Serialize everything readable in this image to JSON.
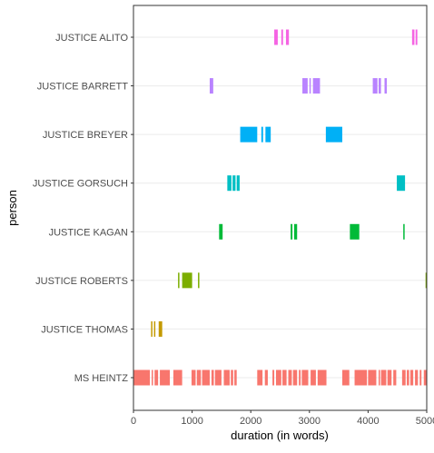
{
  "chart_data": {
    "type": "timeline",
    "xlabel": "duration (in words)",
    "ylabel": "person",
    "xlim": [
      0,
      5000
    ],
    "x_ticks": [
      0,
      1000,
      2000,
      3000,
      4000,
      5000
    ],
    "x_tick_labels": [
      "0",
      "1000",
      "2000",
      "3000",
      "4000",
      "5000"
    ],
    "grid": "major gridlines (light grey)",
    "legend": "none",
    "categories": [
      "JUSTICE ALITO",
      "JUSTICE BARRETT",
      "JUSTICE BREYER",
      "JUSTICE GORSUCH",
      "JUSTICE KAGAN",
      "JUSTICE ROBERTS",
      "JUSTICE THOMAS",
      "MS HEINTZ"
    ],
    "series": [
      {
        "color": "#F564E3",
        "segments": [
          [
            2400,
            2460
          ],
          [
            2520,
            2550
          ],
          [
            2600,
            2650
          ],
          [
            4750,
            4790
          ],
          [
            4810,
            4840
          ]
        ]
      },
      {
        "color": "#B983FF",
        "segments": [
          [
            1300,
            1360
          ],
          [
            2880,
            2970
          ],
          [
            3000,
            3020
          ],
          [
            3060,
            3180
          ],
          [
            4080,
            4160
          ],
          [
            4180,
            4220
          ],
          [
            4280,
            4320
          ]
        ]
      },
      {
        "color": "#00B0F6",
        "segments": [
          [
            1820,
            2110
          ],
          [
            2180,
            2210
          ],
          [
            2250,
            2340
          ],
          [
            3280,
            3560
          ]
        ]
      },
      {
        "color": "#00BFC4",
        "segments": [
          [
            1600,
            1670
          ],
          [
            1690,
            1740
          ],
          [
            1760,
            1810
          ],
          [
            4490,
            4630
          ]
        ]
      },
      {
        "color": "#00BA38",
        "segments": [
          [
            1460,
            1520
          ],
          [
            2680,
            2710
          ],
          [
            2740,
            2790
          ],
          [
            3690,
            3850
          ],
          [
            4600,
            4620
          ]
        ]
      },
      {
        "color": "#7CAE00",
        "segments": [
          [
            760,
            780
          ],
          [
            830,
            1000
          ],
          [
            1100,
            1120
          ],
          [
            4980,
            5000
          ]
        ]
      },
      {
        "color": "#C49A00",
        "segments": [
          [
            300,
            320
          ],
          [
            350,
            370
          ],
          [
            430,
            490
          ]
        ]
      },
      {
        "color": "#F8766D",
        "segments": [
          [
            0,
            280
          ],
          [
            310,
            330
          ],
          [
            360,
            420
          ],
          [
            450,
            620
          ],
          [
            680,
            830
          ],
          [
            990,
            1060
          ],
          [
            1080,
            1150
          ],
          [
            1170,
            1300
          ],
          [
            1330,
            1370
          ],
          [
            1390,
            1500
          ],
          [
            1540,
            1640
          ],
          [
            1660,
            1700
          ],
          [
            1720,
            1760
          ],
          [
            2110,
            2200
          ],
          [
            2240,
            2290
          ],
          [
            2370,
            2400
          ],
          [
            2430,
            2520
          ],
          [
            2540,
            2610
          ],
          [
            2640,
            2700
          ],
          [
            2720,
            2790
          ],
          [
            2820,
            2850
          ],
          [
            2870,
            2980
          ],
          [
            3020,
            3110
          ],
          [
            3140,
            3290
          ],
          [
            3560,
            3680
          ],
          [
            3770,
            3980
          ],
          [
            4000,
            4140
          ],
          [
            4180,
            4200
          ],
          [
            4220,
            4310
          ],
          [
            4330,
            4400
          ],
          [
            4430,
            4480
          ],
          [
            4580,
            4640
          ],
          [
            4660,
            4700
          ],
          [
            4720,
            4770
          ],
          [
            4800,
            4850
          ],
          [
            4880,
            4910
          ],
          [
            4950,
            5000
          ]
        ]
      }
    ]
  }
}
